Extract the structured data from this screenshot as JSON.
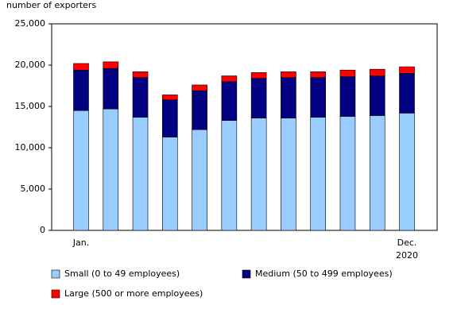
{
  "chart_data": {
    "type": "stacked_bar",
    "y_axis_label": "number of exporters",
    "categories": [
      "Jan.",
      null,
      null,
      null,
      null,
      null,
      null,
      null,
      null,
      null,
      null,
      "Dec."
    ],
    "year_label": "2020",
    "series": [
      {
        "name": "Small (0 to 49 employees)",
        "color": "#99ccff",
        "values": [
          14500,
          14700,
          13700,
          11300,
          12200,
          13300,
          13600,
          13600,
          13700,
          13800,
          13900,
          14200
        ]
      },
      {
        "name": "Medium (50 to 499 employees)",
        "color": "#000080",
        "values": [
          4900,
          4900,
          4800,
          4500,
          4700,
          4700,
          4800,
          4900,
          4800,
          4800,
          4800,
          4800
        ]
      },
      {
        "name": "Large (500 or more employees)",
        "color": "#ff0000",
        "values": [
          800,
          800,
          700,
          600,
          700,
          700,
          700,
          700,
          700,
          800,
          800,
          800
        ]
      }
    ],
    "ylim": [
      0,
      25000
    ],
    "yticks": [
      0,
      {
        "value": 5000,
        "label": "5,000"
      },
      {
        "value": 10000,
        "label": "10,000"
      },
      {
        "value": 15000,
        "label": "15,000"
      },
      {
        "value": 20000,
        "label": "20,000"
      },
      {
        "value": 25000,
        "label": "25,000"
      }
    ]
  }
}
